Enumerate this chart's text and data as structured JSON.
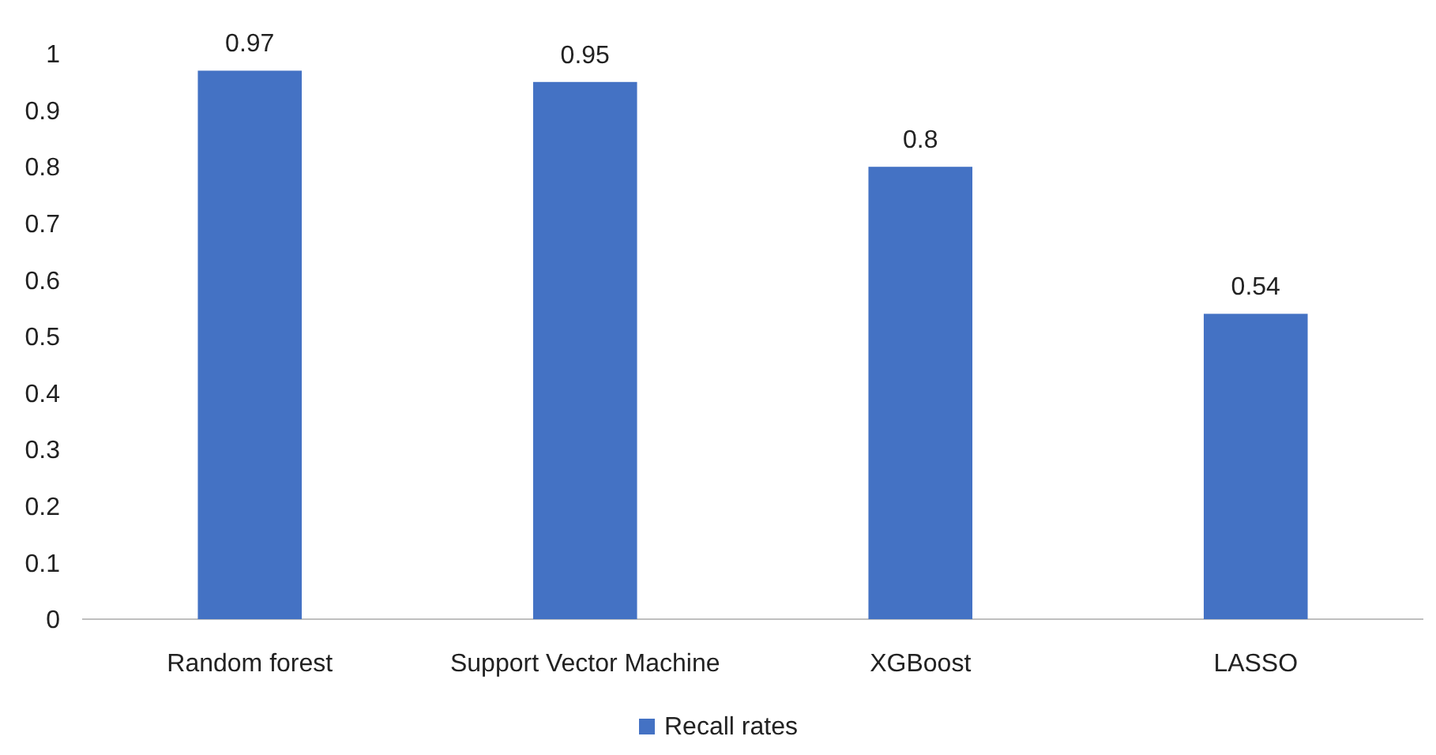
{
  "chart_data": {
    "type": "bar",
    "categories": [
      "Random forest",
      "Support Vector Machine",
      "XGBoost",
      "LASSO"
    ],
    "series": [
      {
        "name": "Recall rates",
        "color": "#4472c4",
        "values": [
          0.97,
          0.95,
          0.8,
          0.54
        ]
      }
    ],
    "ylim": [
      0,
      1
    ],
    "yticks": [
      0,
      0.1,
      0.2,
      0.3,
      0.4,
      0.5,
      0.6,
      0.7,
      0.8,
      0.9,
      1
    ],
    "grid": false,
    "legend": "bottom",
    "data_labels": true
  }
}
